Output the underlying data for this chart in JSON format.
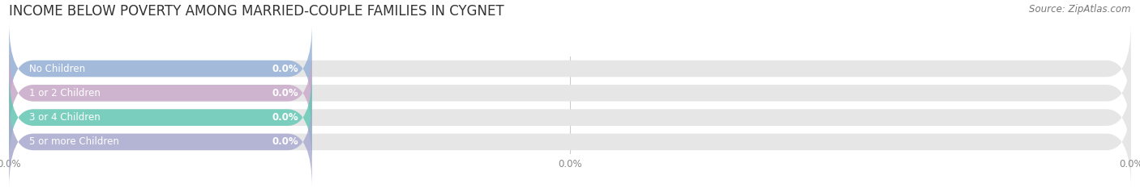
{
  "title": "INCOME BELOW POVERTY AMONG MARRIED-COUPLE FAMILIES IN CYGNET",
  "source": "Source: ZipAtlas.com",
  "categories": [
    "No Children",
    "1 or 2 Children",
    "3 or 4 Children",
    "5 or more Children"
  ],
  "values": [
    0.0,
    0.0,
    0.0,
    0.0
  ],
  "bar_colors": [
    "#92afd7",
    "#c9a8c9",
    "#5ec8b4",
    "#a8a8d0"
  ],
  "background_color": "#ffffff",
  "bar_bg_color": "#e6e6e6",
  "title_fontsize": 12,
  "label_fontsize": 8.5,
  "source_fontsize": 8.5,
  "tick_fontsize": 8.5,
  "grid_color": "#cccccc",
  "tick_color": "#888888",
  "value_label_color": "white",
  "cat_label_color": "white"
}
